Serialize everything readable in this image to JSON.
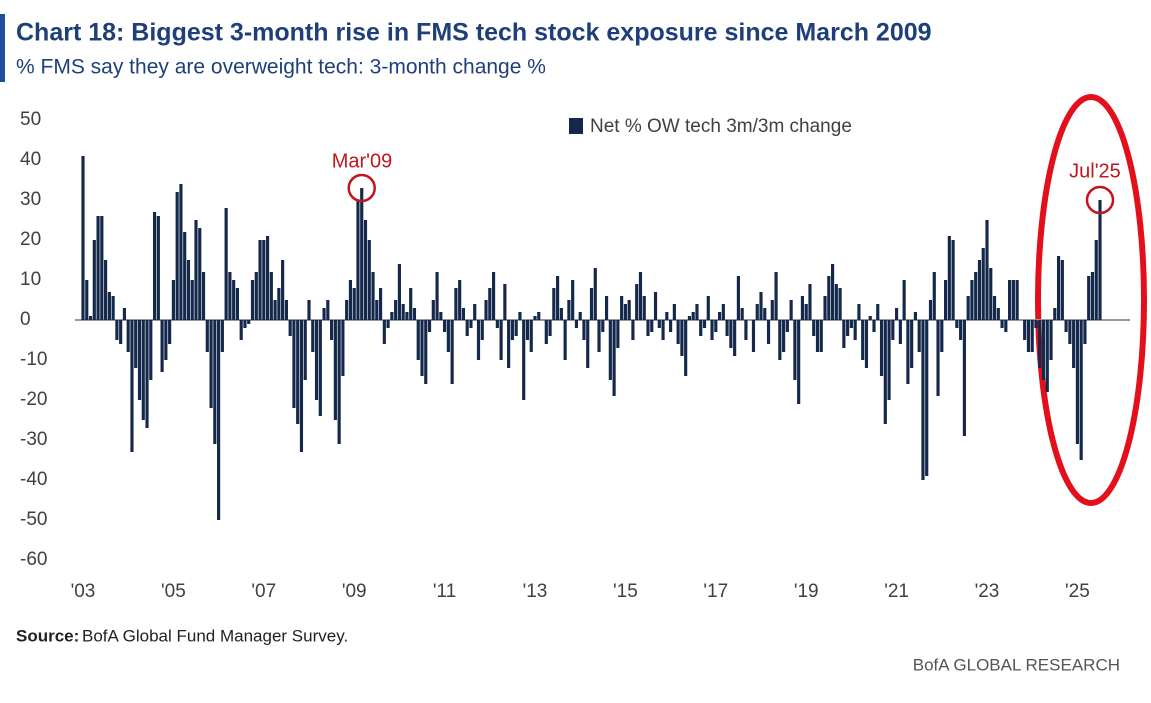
{
  "chart_data": {
    "type": "bar",
    "title": "Chart 18: Biggest 3-month rise in FMS tech stock exposure since March 2009",
    "subtitle": "% FMS say they are overweight tech: 3-month change %",
    "source_label": "Source:",
    "source": "BofA Global Fund Manager Survey.",
    "brand": "BofA GLOBAL RESEARCH",
    "annotations": [
      "Mar'09",
      "Jul'25"
    ],
    "categories": [
      "'03",
      null,
      null,
      null,
      null,
      null,
      null,
      null,
      null,
      null,
      null,
      null,
      null,
      null,
      null,
      null,
      null,
      null,
      null,
      null,
      null,
      null,
      null,
      null,
      "'05",
      null,
      null,
      null,
      null,
      null,
      null,
      null,
      null,
      null,
      null,
      null,
      null,
      null,
      null,
      null,
      null,
      null,
      null,
      null,
      null,
      null,
      null,
      null,
      "'07",
      null,
      null,
      null,
      null,
      null,
      null,
      null,
      null,
      null,
      null,
      null,
      null,
      null,
      null,
      null,
      null,
      null,
      null,
      null,
      null,
      null,
      null,
      null,
      "'09",
      null,
      null,
      null,
      null,
      null,
      null,
      null,
      null,
      null,
      null,
      null,
      null,
      null,
      null,
      null,
      null,
      null,
      null,
      null,
      null,
      null,
      null,
      null,
      "'11",
      null,
      null,
      null,
      null,
      null,
      null,
      null,
      null,
      null,
      null,
      null,
      null,
      null,
      null,
      null,
      null,
      null,
      null,
      null,
      null,
      null,
      null,
      null,
      "'13",
      null,
      null,
      null,
      null,
      null,
      null,
      null,
      null,
      null,
      null,
      null,
      null,
      null,
      null,
      null,
      null,
      null,
      null,
      null,
      null,
      null,
      null,
      null,
      "'15",
      null,
      null,
      null,
      null,
      null,
      null,
      null,
      null,
      null,
      null,
      null,
      null,
      null,
      null,
      null,
      null,
      null,
      null,
      null,
      null,
      null,
      null,
      null,
      "'17",
      null,
      null,
      null,
      null,
      null,
      null,
      null,
      null,
      null,
      null,
      null,
      null,
      null,
      null,
      null,
      null,
      null,
      null,
      null,
      null,
      null,
      null,
      null,
      "'19",
      null,
      null,
      null,
      null,
      null,
      null,
      null,
      null,
      null,
      null,
      null,
      null,
      null,
      null,
      null,
      null,
      null,
      null,
      null,
      null,
      null,
      null,
      null,
      "'21",
      null,
      null,
      null,
      null,
      null,
      null,
      null,
      null,
      null,
      null,
      null,
      null,
      null,
      null,
      null,
      null,
      null,
      null,
      null,
      null,
      null,
      null,
      null,
      "'23",
      null,
      null,
      null,
      null,
      null,
      null,
      null,
      null,
      null,
      null,
      null,
      null,
      null,
      null,
      null,
      null,
      null,
      null,
      null,
      null,
      null,
      null,
      null,
      "'25",
      null,
      null,
      null,
      null,
      null,
      null
    ],
    "series": [
      {
        "name": "Net % OW tech 3m/3m change",
        "color": "#14284b",
        "values": [
          41,
          10,
          1,
          20,
          26,
          26,
          15,
          7,
          6,
          -5,
          -6,
          3,
          -8,
          -33,
          -12,
          -20,
          -25,
          -27,
          -15,
          27,
          26,
          -13,
          -10,
          -6,
          10,
          32,
          34,
          22,
          15,
          10,
          25,
          23,
          12,
          -8,
          -22,
          -31,
          -50,
          -8,
          28,
          12,
          10,
          8,
          -5,
          -2,
          -1,
          10,
          12,
          20,
          20,
          21,
          12,
          5,
          8,
          15,
          5,
          -4,
          -22,
          -26,
          -33,
          -15,
          5,
          -8,
          -20,
          -24,
          3,
          5,
          -5,
          -25,
          -31,
          -14,
          5,
          10,
          8,
          30,
          33,
          25,
          20,
          12,
          5,
          8,
          -6,
          -2,
          2,
          5,
          14,
          4,
          2,
          8,
          3,
          -10,
          -14,
          -16,
          -3,
          5,
          12,
          2,
          -3,
          -8,
          -16,
          8,
          10,
          3,
          -4,
          -2,
          4,
          -10,
          -5,
          5,
          8,
          12,
          -2,
          -10,
          9,
          -12,
          -5,
          -4,
          2,
          -20,
          -5,
          -8,
          1,
          2,
          0,
          -6,
          -4,
          8,
          11,
          3,
          -10,
          5,
          10,
          -2,
          2,
          -5,
          -12,
          8,
          13,
          -8,
          -3,
          6,
          -15,
          -19,
          -7,
          6,
          4,
          5,
          -5,
          9,
          12,
          6,
          -4,
          -3,
          7,
          -2,
          -5,
          2,
          -3,
          4,
          -6,
          -9,
          -14,
          1,
          2,
          4,
          -4,
          -2,
          6,
          -5,
          -3,
          2,
          4,
          -4,
          -7,
          -9,
          11,
          3,
          -5,
          0,
          -8,
          4,
          7,
          3,
          -6,
          5,
          12,
          -10,
          -8,
          -3,
          5,
          -15,
          -21,
          6,
          4,
          9,
          -4,
          -8,
          -8,
          6,
          11,
          14,
          9,
          8,
          -7,
          -4,
          -2,
          -5,
          4,
          -10,
          -12,
          1,
          -3,
          4,
          -14,
          -26,
          -20,
          -5,
          3,
          -6,
          10,
          -16,
          -12,
          2,
          -8,
          -40,
          -39,
          5,
          12,
          -19,
          -8,
          10,
          21,
          20,
          -2,
          -5,
          -29,
          6,
          10,
          12,
          15,
          18,
          25,
          13,
          6,
          3,
          -2,
          -3,
          10,
          10,
          10,
          0,
          -5,
          -8,
          -8,
          -2,
          -12,
          -15,
          -18,
          -10,
          3,
          16,
          15,
          -3,
          -6,
          -12,
          -31,
          -35,
          -6,
          11,
          12,
          20,
          30
        ]
      }
    ],
    "ylim": [
      -60,
      50
    ],
    "yticks": [
      50,
      40,
      30,
      20,
      10,
      0,
      -10,
      -20,
      -30,
      -40,
      -50,
      -60
    ],
    "legend": "top",
    "grid": false
  }
}
